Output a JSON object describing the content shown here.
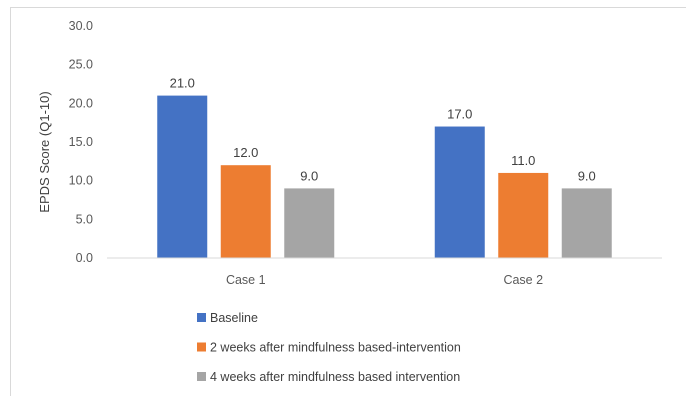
{
  "chart_data": {
    "type": "bar",
    "title": "",
    "xlabel": "",
    "ylabel": "EPDS Score (Q1-10)",
    "ylim": [
      0,
      30
    ],
    "yticks": [
      "0.0",
      "5.0",
      "10.0",
      "15.0",
      "20.0",
      "25.0",
      "30.0"
    ],
    "categories": [
      "Case 1",
      "Case 2"
    ],
    "grid": false,
    "legend_position": "bottom-left",
    "series": [
      {
        "name": "Baseline",
        "color": "#4472c4",
        "values": [
          21.0,
          17.0
        ],
        "labels": [
          "21.0",
          "17.0"
        ]
      },
      {
        "name": "2 weeks after mindfulness based-intervention",
        "color": "#ed7d31",
        "values": [
          12.0,
          11.0
        ],
        "labels": [
          "12.0",
          "11.0"
        ]
      },
      {
        "name": "4 weeks after mindfulness based intervention",
        "color": "#a5a5a5",
        "values": [
          9.0,
          9.0
        ],
        "labels": [
          "9.0",
          "9.0"
        ]
      }
    ]
  }
}
